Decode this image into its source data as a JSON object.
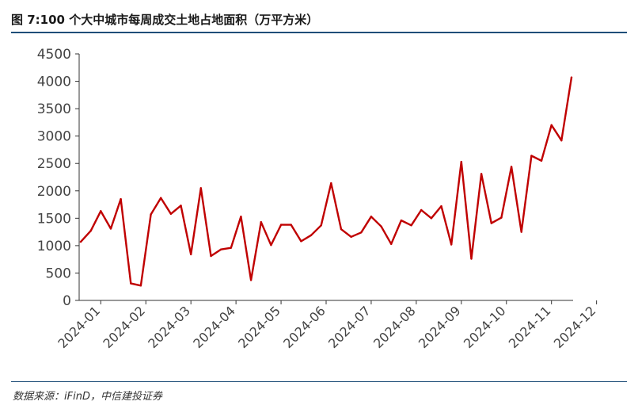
{
  "title": "图  7:100 个大中城市每周成交土地占地面积（万平方米）",
  "source": "数据来源：iFinD，中信建投证券",
  "colors": {
    "line": "#c00000",
    "rule": "#1f4e79",
    "axis": "#333333",
    "text": "#444444"
  },
  "chart_data": {
    "type": "line",
    "title": "",
    "xlabel": "",
    "ylabel": "",
    "ylim": [
      0,
      4500
    ],
    "yticks": [
      0,
      500,
      1000,
      1500,
      2000,
      2500,
      3000,
      3500,
      4000,
      4500
    ],
    "grid": false,
    "x_tick_labels": [
      "2024-01",
      "2024-02",
      "2024-03",
      "2024-04",
      "2024-05",
      "2024-06",
      "2024-07",
      "2024-08",
      "2024-09",
      "2024-10",
      "2024-11",
      "2024-12"
    ],
    "x_tick_positions": [
      2,
      6.5,
      11,
      15.5,
      20,
      24.5,
      29,
      33.5,
      38,
      42.5,
      47,
      51.5
    ],
    "series": [
      {
        "values": [
          1070,
          1270,
          1630,
          1310,
          1850,
          310,
          270,
          1570,
          1870,
          1580,
          1730,
          840,
          2050,
          810,
          930,
          960,
          1530,
          370,
          1430,
          1010,
          1380,
          1380,
          1080,
          1190,
          1370,
          2140,
          1300,
          1160,
          1240,
          1530,
          1350,
          1030,
          1460,
          1370,
          1650,
          1500,
          1720,
          1020,
          2530,
          760,
          2310,
          1410,
          1510,
          2440,
          1250,
          2640,
          2550,
          3200,
          2920,
          4070
        ]
      }
    ]
  }
}
